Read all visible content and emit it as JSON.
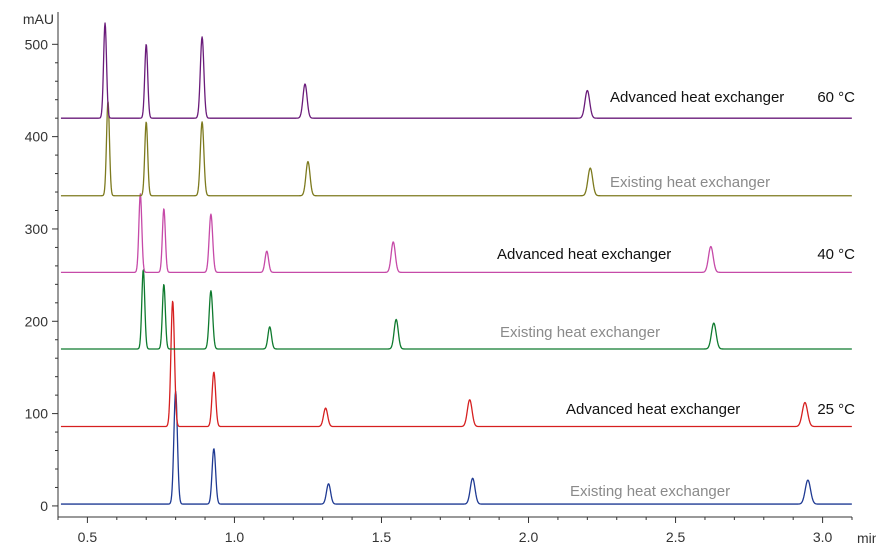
{
  "chart_data": {
    "type": "line",
    "title": "",
    "xlabel": "min",
    "ylabel": "mAU",
    "xlim": [
      0.4,
      3.1
    ],
    "ylim": [
      -12,
      535
    ],
    "grid": false,
    "x_ticks": [
      0.5,
      1.0,
      1.5,
      2.0,
      2.5,
      3.0
    ],
    "x_tick_labels": [
      "0.5",
      "1.0",
      "1.5",
      "2.0",
      "2.5",
      "3.0"
    ],
    "y_ticks": [
      0,
      100,
      200,
      300,
      400,
      500
    ],
    "y_tick_labels": [
      "0",
      "100",
      "200",
      "300",
      "400",
      "500"
    ],
    "series": [
      {
        "color": "#1f3a93",
        "baseline": 2,
        "peaks": [
          {
            "rt": 0.8,
            "height": 122,
            "width": 0.006
          },
          {
            "rt": 0.93,
            "height": 60,
            "width": 0.006
          },
          {
            "rt": 1.32,
            "height": 22,
            "width": 0.007
          },
          {
            "rt": 1.81,
            "height": 28,
            "width": 0.008
          },
          {
            "rt": 2.95,
            "height": 26,
            "width": 0.009
          }
        ]
      },
      {
        "color": "#d62020",
        "baseline": 86,
        "peaks": [
          {
            "rt": 0.79,
            "height": 136,
            "width": 0.006
          },
          {
            "rt": 0.93,
            "height": 59,
            "width": 0.006
          },
          {
            "rt": 1.31,
            "height": 20,
            "width": 0.007
          },
          {
            "rt": 1.8,
            "height": 29,
            "width": 0.008
          },
          {
            "rt": 2.94,
            "height": 26,
            "width": 0.009
          }
        ]
      },
      {
        "color": "#0e7a2e",
        "baseline": 170,
        "peaks": [
          {
            "rt": 0.69,
            "height": 86,
            "width": 0.005
          },
          {
            "rt": 0.76,
            "height": 70,
            "width": 0.005
          },
          {
            "rt": 0.92,
            "height": 63,
            "width": 0.006
          },
          {
            "rt": 1.12,
            "height": 24,
            "width": 0.006
          },
          {
            "rt": 1.55,
            "height": 32,
            "width": 0.007
          },
          {
            "rt": 2.63,
            "height": 28,
            "width": 0.008
          }
        ]
      },
      {
        "color": "#c64aa8",
        "baseline": 253,
        "peaks": [
          {
            "rt": 0.68,
            "height": 85,
            "width": 0.005
          },
          {
            "rt": 0.76,
            "height": 69,
            "width": 0.005
          },
          {
            "rt": 0.92,
            "height": 63,
            "width": 0.006
          },
          {
            "rt": 1.11,
            "height": 23,
            "width": 0.006
          },
          {
            "rt": 1.54,
            "height": 33,
            "width": 0.007
          },
          {
            "rt": 2.62,
            "height": 28,
            "width": 0.008
          }
        ]
      },
      {
        "color": "#7d7a1e",
        "baseline": 336,
        "peaks": [
          {
            "rt": 0.57,
            "height": 102,
            "width": 0.005
          },
          {
            "rt": 0.7,
            "height": 80,
            "width": 0.005
          },
          {
            "rt": 0.89,
            "height": 80,
            "width": 0.006
          },
          {
            "rt": 1.25,
            "height": 37,
            "width": 0.007
          },
          {
            "rt": 2.21,
            "height": 30,
            "width": 0.008
          }
        ]
      },
      {
        "color": "#6a1b7a",
        "baseline": 420,
        "peaks": [
          {
            "rt": 0.56,
            "height": 103,
            "width": 0.005
          },
          {
            "rt": 0.7,
            "height": 80,
            "width": 0.005
          },
          {
            "rt": 0.89,
            "height": 88,
            "width": 0.006
          },
          {
            "rt": 1.24,
            "height": 37,
            "width": 0.007
          },
          {
            "rt": 2.2,
            "height": 30,
            "width": 0.008
          }
        ]
      }
    ],
    "annotations": [
      {
        "text": "Advanced heat exchanger",
        "temp": "60 °C",
        "color": "#111111"
      },
      {
        "text": "Existing heat exchanger",
        "temp": "",
        "color": "#8a8a8a"
      },
      {
        "text": "Advanced heat exchanger",
        "temp": "40 °C",
        "color": "#111111"
      },
      {
        "text": "Existing heat exchanger",
        "temp": "",
        "color": "#8a8a8a"
      },
      {
        "text": "Advanced heat exchanger",
        "temp": "25 °C",
        "color": "#111111"
      },
      {
        "text": "Existing heat exchanger",
        "temp": "",
        "color": "#8a8a8a"
      }
    ]
  }
}
